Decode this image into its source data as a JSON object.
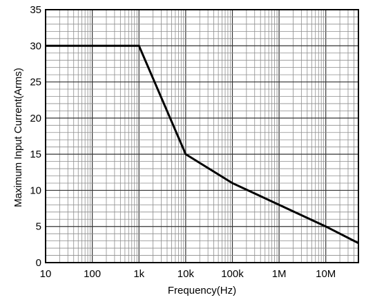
{
  "chart_data": {
    "type": "line",
    "title": "",
    "xlabel": "Frequency(Hz)",
    "ylabel": "Maximum Input Current(Arms)",
    "x_scale": "log",
    "xlim": [
      10,
      50000000
    ],
    "ylim": [
      0,
      35
    ],
    "grid": true,
    "x_ticks": [
      {
        "value": 10,
        "label": "10"
      },
      {
        "value": 100,
        "label": "100"
      },
      {
        "value": 1000,
        "label": "1k"
      },
      {
        "value": 10000,
        "label": "10k"
      },
      {
        "value": 100000,
        "label": "100k"
      },
      {
        "value": 1000000,
        "label": "1M"
      },
      {
        "value": 10000000,
        "label": "10M"
      }
    ],
    "y_ticks": [
      {
        "value": 0,
        "label": "0"
      },
      {
        "value": 5,
        "label": "5"
      },
      {
        "value": 10,
        "label": "10"
      },
      {
        "value": 15,
        "label": "15"
      },
      {
        "value": 20,
        "label": "20"
      },
      {
        "value": 25,
        "label": "25"
      },
      {
        "value": 30,
        "label": "30"
      },
      {
        "value": 35,
        "label": "35"
      }
    ],
    "series": [
      {
        "x": [
          10,
          1000,
          10000,
          100000,
          1000000,
          10000000,
          50000000
        ],
        "y": [
          30,
          30,
          15,
          11,
          8,
          5,
          2.7
        ],
        "color": "#000000"
      }
    ]
  }
}
